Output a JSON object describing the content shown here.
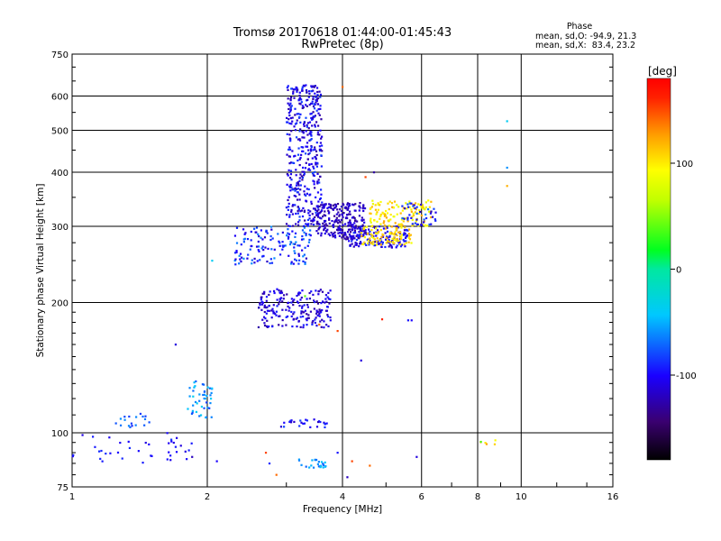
{
  "chart_data": {
    "type": "scatter",
    "title": "Tromsø 20170618 01:44:00-01:45:43",
    "subtitle": "RwPretec (8p)",
    "phase_stats": {
      "heading": "Phase",
      "line1": "mean, sd,O: -94.9, 21.3",
      "line2": "mean, sd,X:  83.4, 23.2"
    },
    "xlabel": "Frequency [MHz]",
    "ylabel": "Stationary phase Virtual Height [km]",
    "x_scale": "log",
    "y_scale": "log",
    "xlim": [
      1,
      16
    ],
    "ylim": [
      75,
      750
    ],
    "x_ticks": [
      1,
      2,
      4,
      6,
      8,
      10,
      16
    ],
    "x_tick_labels": [
      "1",
      "2",
      "4",
      "6",
      "8",
      "10",
      "16"
    ],
    "y_ticks": [
      75,
      100,
      200,
      300,
      400,
      500,
      600,
      750
    ],
    "y_tick_labels": [
      "75",
      "100",
      "200",
      "300",
      "400",
      "500",
      "600",
      "750"
    ],
    "grid": true,
    "colorbar": {
      "label": "[deg]",
      "range": [
        -180,
        180
      ],
      "ticks": [
        100,
        0,
        -100
      ],
      "tick_labels": [
        "100",
        "0",
        "-100"
      ]
    },
    "clusters": [
      {
        "f": [
          1.0,
          1.85
        ],
        "h": [
          84,
          100
        ],
        "phase": [
          -110,
          -85
        ],
        "n": 40
      },
      {
        "f": [
          1.25,
          1.55
        ],
        "h": [
          103,
          112
        ],
        "phase": [
          -95,
          -60
        ],
        "n": 18
      },
      {
        "f": [
          1.8,
          2.05
        ],
        "h": [
          108,
          132
        ],
        "phase": [
          -85,
          -35
        ],
        "n": 45
      },
      {
        "f": [
          2.3,
          3.4
        ],
        "h": [
          245,
          300
        ],
        "phase": [
          -120,
          -60
        ],
        "n": 140
      },
      {
        "f": [
          2.6,
          3.8
        ],
        "h": [
          175,
          215
        ],
        "phase": [
          -130,
          -90
        ],
        "n": 200
      },
      {
        "f": [
          3.0,
          3.6
        ],
        "h": [
          300,
          640
        ],
        "phase": [
          -130,
          -80
        ],
        "n": 420
      },
      {
        "f": [
          3.5,
          4.5
        ],
        "h": [
          280,
          340
        ],
        "phase": [
          -135,
          -105
        ],
        "n": 240
      },
      {
        "f": [
          4.1,
          5.6
        ],
        "h": [
          268,
          300
        ],
        "phase": [
          -125,
          -85
        ],
        "n": 150
      },
      {
        "f": [
          4.4,
          5.7
        ],
        "h": [
          272,
          300
        ],
        "phase": [
          90,
          125
        ],
        "n": 90
      },
      {
        "f": [
          4.6,
          6.3
        ],
        "h": [
          300,
          345
        ],
        "phase": [
          80,
          125
        ],
        "n": 120
      },
      {
        "f": [
          5.4,
          6.5
        ],
        "h": [
          300,
          340
        ],
        "phase": [
          -125,
          -60
        ],
        "n": 40
      },
      {
        "f": [
          2.9,
          3.7
        ],
        "h": [
          103,
          108
        ],
        "phase": [
          -120,
          -80
        ],
        "n": 26
      },
      {
        "f": [
          3.2,
          3.7
        ],
        "h": [
          83,
          87
        ],
        "phase": [
          -75,
          -40
        ],
        "n": 24
      },
      {
        "f": [
          8.1,
          8.8
        ],
        "h": [
          94,
          97
        ],
        "phase": [
          -60,
          150
        ],
        "n": 6
      }
    ],
    "points": [
      {
        "f": 9.3,
        "h": 525,
        "phase": -40
      },
      {
        "f": 9.3,
        "h": 410,
        "phase": -60
      },
      {
        "f": 9.3,
        "h": 372,
        "phase": 120
      },
      {
        "f": 2.05,
        "h": 250,
        "phase": -40
      },
      {
        "f": 1.7,
        "h": 160,
        "phase": -110
      },
      {
        "f": 5.7,
        "h": 182,
        "phase": -100
      },
      {
        "f": 5.6,
        "h": 182,
        "phase": -95
      },
      {
        "f": 5.85,
        "h": 88,
        "phase": -110
      },
      {
        "f": 4.4,
        "h": 147,
        "phase": -110
      },
      {
        "f": 4.0,
        "h": 630,
        "phase": 140
      },
      {
        "f": 4.5,
        "h": 390,
        "phase": 150
      },
      {
        "f": 4.7,
        "h": 400,
        "phase": -130
      },
      {
        "f": 3.9,
        "h": 172,
        "phase": 150
      },
      {
        "f": 4.9,
        "h": 183,
        "phase": 160
      },
      {
        "f": 2.7,
        "h": 90,
        "phase": 150
      },
      {
        "f": 2.85,
        "h": 80,
        "phase": 140
      },
      {
        "f": 4.2,
        "h": 86,
        "phase": 150
      },
      {
        "f": 4.6,
        "h": 84,
        "phase": 140
      },
      {
        "f": 3.9,
        "h": 90,
        "phase": -95
      },
      {
        "f": 4.1,
        "h": 79,
        "phase": -120
      },
      {
        "f": 2.75,
        "h": 85,
        "phase": -90
      },
      {
        "f": 1.85,
        "h": 88,
        "phase": -120
      },
      {
        "f": 2.1,
        "h": 86,
        "phase": -100
      },
      {
        "f": 3.3,
        "h": 207,
        "phase": 40
      },
      {
        "f": 3.55,
        "h": 178,
        "phase": 140
      }
    ]
  }
}
